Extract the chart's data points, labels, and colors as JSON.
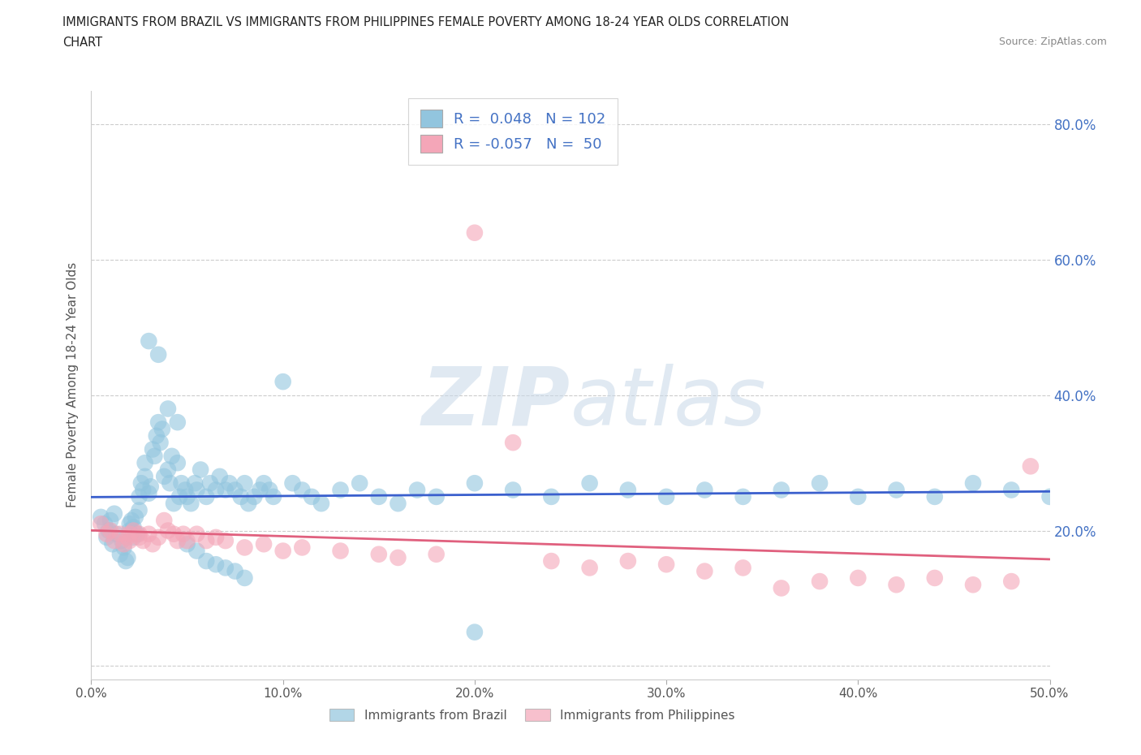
{
  "title_line1": "IMMIGRANTS FROM BRAZIL VS IMMIGRANTS FROM PHILIPPINES FEMALE POVERTY AMONG 18-24 YEAR OLDS CORRELATION",
  "title_line2": "CHART",
  "source_text": "Source: ZipAtlas.com",
  "ylabel": "Female Poverty Among 18-24 Year Olds",
  "xlim": [
    0.0,
    0.5
  ],
  "ylim": [
    -0.02,
    0.85
  ],
  "xticks": [
    0.0,
    0.1,
    0.2,
    0.3,
    0.4,
    0.5
  ],
  "xticklabels": [
    "0.0%",
    "10.0%",
    "20.0%",
    "30.0%",
    "40.0%",
    "50.0%"
  ],
  "yticks": [
    0.0,
    0.2,
    0.4,
    0.6,
    0.8
  ],
  "yticklabels_right": [
    "",
    "20.0%",
    "40.0%",
    "60.0%",
    "80.0%"
  ],
  "brazil_color": "#92c5de",
  "philippines_color": "#f4a6b8",
  "brazil_R": 0.048,
  "brazil_N": 102,
  "philippines_R": -0.057,
  "philippines_N": 50,
  "legend_label_brazil": "Immigrants from Brazil",
  "legend_label_philippines": "Immigrants from Philippines",
  "watermark_part1": "ZIP",
  "watermark_part2": "atlas",
  "grid_color": "#cccccc",
  "trend_brazil_color": "#3a5fcd",
  "trend_philippines_color": "#e0607e",
  "brazil_x": [
    0.005,
    0.007,
    0.008,
    0.009,
    0.01,
    0.011,
    0.012,
    0.013,
    0.015,
    0.016,
    0.017,
    0.018,
    0.019,
    0.02,
    0.02,
    0.021,
    0.022,
    0.022,
    0.023,
    0.024,
    0.025,
    0.025,
    0.026,
    0.027,
    0.028,
    0.028,
    0.03,
    0.031,
    0.032,
    0.033,
    0.034,
    0.035,
    0.036,
    0.037,
    0.038,
    0.04,
    0.041,
    0.042,
    0.043,
    0.045,
    0.046,
    0.047,
    0.049,
    0.05,
    0.052,
    0.054,
    0.055,
    0.057,
    0.06,
    0.062,
    0.065,
    0.067,
    0.07,
    0.072,
    0.075,
    0.078,
    0.08,
    0.082,
    0.085,
    0.088,
    0.09,
    0.093,
    0.095,
    0.1,
    0.105,
    0.11,
    0.115,
    0.12,
    0.13,
    0.14,
    0.15,
    0.16,
    0.17,
    0.18,
    0.2,
    0.22,
    0.24,
    0.26,
    0.28,
    0.3,
    0.32,
    0.34,
    0.36,
    0.38,
    0.4,
    0.42,
    0.44,
    0.46,
    0.48,
    0.5,
    0.03,
    0.035,
    0.04,
    0.045,
    0.05,
    0.055,
    0.06,
    0.065,
    0.07,
    0.075,
    0.08,
    0.2
  ],
  "brazil_y": [
    0.22,
    0.21,
    0.19,
    0.2,
    0.215,
    0.18,
    0.225,
    0.195,
    0.165,
    0.185,
    0.175,
    0.155,
    0.16,
    0.2,
    0.21,
    0.215,
    0.19,
    0.205,
    0.22,
    0.195,
    0.25,
    0.23,
    0.27,
    0.26,
    0.3,
    0.28,
    0.255,
    0.265,
    0.32,
    0.31,
    0.34,
    0.36,
    0.33,
    0.35,
    0.28,
    0.29,
    0.27,
    0.31,
    0.24,
    0.3,
    0.25,
    0.27,
    0.26,
    0.25,
    0.24,
    0.27,
    0.26,
    0.29,
    0.25,
    0.27,
    0.26,
    0.28,
    0.26,
    0.27,
    0.26,
    0.25,
    0.27,
    0.24,
    0.25,
    0.26,
    0.27,
    0.26,
    0.25,
    0.42,
    0.27,
    0.26,
    0.25,
    0.24,
    0.26,
    0.27,
    0.25,
    0.24,
    0.26,
    0.25,
    0.27,
    0.26,
    0.25,
    0.27,
    0.26,
    0.25,
    0.26,
    0.25,
    0.26,
    0.27,
    0.25,
    0.26,
    0.25,
    0.27,
    0.26,
    0.25,
    0.48,
    0.46,
    0.38,
    0.36,
    0.18,
    0.17,
    0.155,
    0.15,
    0.145,
    0.14,
    0.13,
    0.05
  ],
  "philippines_x": [
    0.005,
    0.008,
    0.01,
    0.012,
    0.015,
    0.017,
    0.019,
    0.02,
    0.022,
    0.025,
    0.027,
    0.03,
    0.032,
    0.035,
    0.038,
    0.04,
    0.043,
    0.045,
    0.048,
    0.05,
    0.055,
    0.06,
    0.065,
    0.07,
    0.08,
    0.09,
    0.1,
    0.11,
    0.13,
    0.15,
    0.16,
    0.18,
    0.2,
    0.22,
    0.24,
    0.26,
    0.28,
    0.3,
    0.32,
    0.34,
    0.36,
    0.38,
    0.4,
    0.42,
    0.44,
    0.46,
    0.48,
    0.49,
    0.02,
    0.025
  ],
  "philippines_y": [
    0.21,
    0.195,
    0.2,
    0.185,
    0.195,
    0.18,
    0.19,
    0.185,
    0.2,
    0.195,
    0.185,
    0.195,
    0.18,
    0.19,
    0.215,
    0.2,
    0.195,
    0.185,
    0.195,
    0.185,
    0.195,
    0.185,
    0.19,
    0.185,
    0.175,
    0.18,
    0.17,
    0.175,
    0.17,
    0.165,
    0.16,
    0.165,
    0.64,
    0.33,
    0.155,
    0.145,
    0.155,
    0.15,
    0.14,
    0.145,
    0.115,
    0.125,
    0.13,
    0.12,
    0.13,
    0.12,
    0.125,
    0.295,
    0.195,
    0.19
  ]
}
